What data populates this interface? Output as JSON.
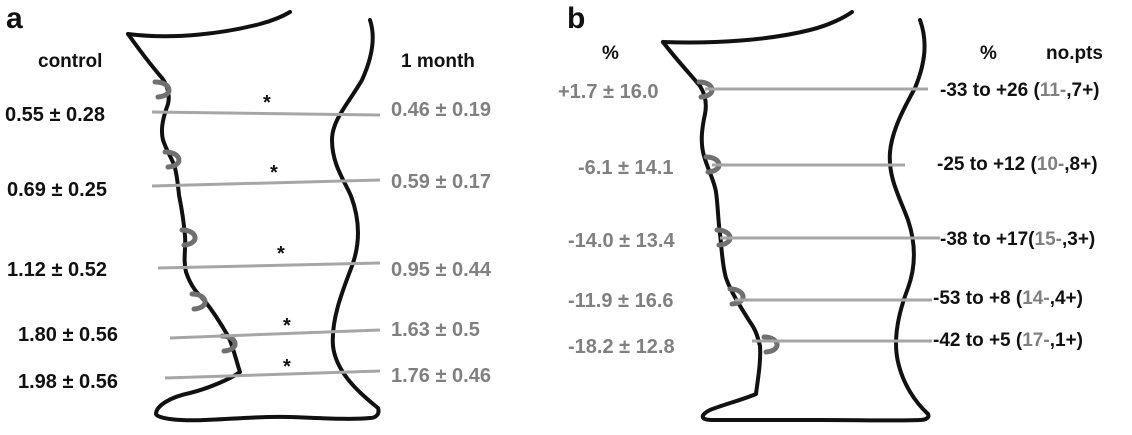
{
  "panel_a": {
    "letter": "a",
    "header_left": "control",
    "header_right": "1 month",
    "rows": [
      {
        "control": "0.55 ± 0.28",
        "month": "0.46 ± 0.19",
        "star": "*"
      },
      {
        "control": "0.69 ± 0.25",
        "month": "0.59 ± 0.17",
        "star": "*"
      },
      {
        "control": "1.12 ± 0.52",
        "month": "0.95 ± 0.44",
        "star": "*"
      },
      {
        "control": "1.80 ± 0.56",
        "month": "1.63 ± 0.5",
        "star": "*"
      },
      {
        "control": "1.98 ± 0.56",
        "month": "1.76 ± 0.46",
        "star": "*"
      }
    ]
  },
  "panel_b": {
    "letter": "b",
    "header_left": "%",
    "header_right_pct": "%",
    "header_right_pts": "no.pts",
    "rows": [
      {
        "pct": "+1.7 ± 16.0",
        "range": "-33 to +26 (",
        "minus": "11-",
        "plus": ",7+)"
      },
      {
        "pct": "-6.1 ± 14.1",
        "range": "-25 to +12 (",
        "minus": "10-",
        "plus": ",8+)"
      },
      {
        "pct": "-14.0 ± 13.4",
        "range": "-38 to +17(",
        "minus": "15-",
        "plus": ",3+)"
      },
      {
        "pct": "-11.9 ± 16.6",
        "range": "-53 to +8 (",
        "minus": "14-",
        "plus": ",4+)"
      },
      {
        "pct": "-18.2 ± 12.8",
        "range": "-42 to +5 (",
        "minus": "17-",
        "plus": ",1+)"
      }
    ]
  },
  "colors": {
    "ink": "#111111",
    "grey_text": "#808080",
    "measure_line": "#a6a6a6",
    "landmark_mark": "#707070"
  }
}
